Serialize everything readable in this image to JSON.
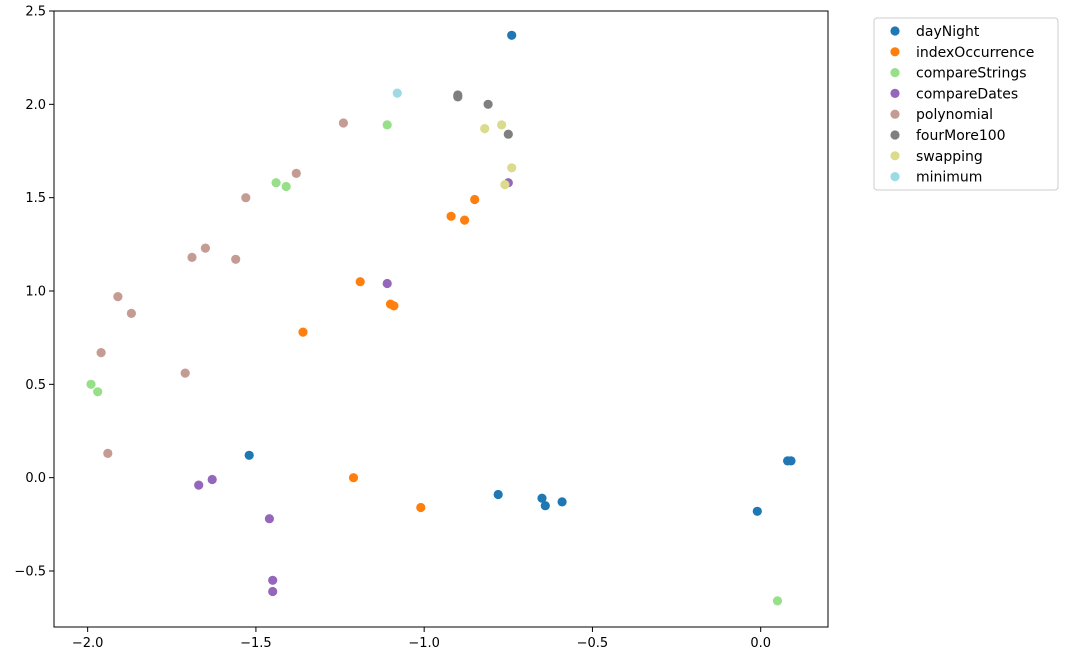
{
  "chart_data": {
    "type": "scatter",
    "title": "",
    "xlabel": "",
    "ylabel": "",
    "xlim": [
      -2.1,
      0.2
    ],
    "ylim": [
      -0.8,
      2.5
    ],
    "xticks": [
      -2.0,
      -1.5,
      -1.0,
      -0.5,
      0.0
    ],
    "xtick_labels": [
      "−2.0",
      "−1.5",
      "−1.0",
      "−0.5",
      "0.0"
    ],
    "yticks": [
      -0.5,
      0.0,
      0.5,
      1.0,
      1.5,
      2.0,
      2.5
    ],
    "ytick_labels": [
      "−0.5",
      "0.0",
      "0.5",
      "1.0",
      "1.5",
      "2.0",
      "2.5"
    ],
    "grid": false,
    "legend_position": "outside-top-right",
    "series": [
      {
        "name": "dayNight",
        "color": "#1f77b4",
        "points": [
          [
            -0.74,
            2.37
          ],
          [
            -1.52,
            0.12
          ],
          [
            -0.78,
            -0.09
          ],
          [
            -0.65,
            -0.11
          ],
          [
            -0.64,
            -0.15
          ],
          [
            -0.59,
            -0.13
          ],
          [
            -0.01,
            -0.18
          ],
          [
            0.09,
            0.09
          ],
          [
            0.08,
            0.09
          ]
        ]
      },
      {
        "name": "indexOccurrence",
        "color": "#ff7f0e",
        "points": [
          [
            -0.92,
            1.4
          ],
          [
            -0.88,
            1.38
          ],
          [
            -0.85,
            1.49
          ],
          [
            -1.19,
            1.05
          ],
          [
            -1.1,
            0.93
          ],
          [
            -1.09,
            0.92
          ],
          [
            -1.36,
            0.78
          ],
          [
            -1.21,
            0.0
          ],
          [
            -1.01,
            -0.16
          ]
        ]
      },
      {
        "name": "compareStrings",
        "color": "#98df8a",
        "points": [
          [
            -1.11,
            1.89
          ],
          [
            -1.44,
            1.58
          ],
          [
            -1.41,
            1.56
          ],
          [
            -1.99,
            0.5
          ],
          [
            -1.97,
            0.46
          ],
          [
            0.05,
            -0.66
          ]
        ]
      },
      {
        "name": "compareDates",
        "color": "#9467bd",
        "points": [
          [
            -0.75,
            1.58
          ],
          [
            -1.11,
            1.04
          ],
          [
            -1.67,
            -0.04
          ],
          [
            -1.63,
            -0.01
          ],
          [
            -1.46,
            -0.22
          ],
          [
            -1.45,
            -0.55
          ],
          [
            -1.45,
            -0.61
          ]
        ]
      },
      {
        "name": "polynomial",
        "color": "#c49c94",
        "points": [
          [
            -1.24,
            1.9
          ],
          [
            -1.38,
            1.63
          ],
          [
            -1.53,
            1.5
          ],
          [
            -1.65,
            1.23
          ],
          [
            -1.69,
            1.18
          ],
          [
            -1.56,
            1.17
          ],
          [
            -1.91,
            0.97
          ],
          [
            -1.87,
            0.88
          ],
          [
            -1.96,
            0.67
          ],
          [
            -1.71,
            0.56
          ],
          [
            -1.94,
            0.13
          ]
        ]
      },
      {
        "name": "fourMore100",
        "color": "#7f7f7f",
        "points": [
          [
            -0.9,
            2.05
          ],
          [
            -0.9,
            2.04
          ],
          [
            -0.81,
            2.0
          ],
          [
            -0.75,
            1.84
          ]
        ]
      },
      {
        "name": "swapping",
        "color": "#dbdb8d",
        "points": [
          [
            -0.77,
            1.89
          ],
          [
            -0.82,
            1.87
          ],
          [
            -0.74,
            1.66
          ],
          [
            -0.76,
            1.57
          ]
        ]
      },
      {
        "name": "minimum",
        "color": "#9edae5",
        "points": [
          [
            -1.08,
            2.06
          ]
        ]
      }
    ]
  }
}
